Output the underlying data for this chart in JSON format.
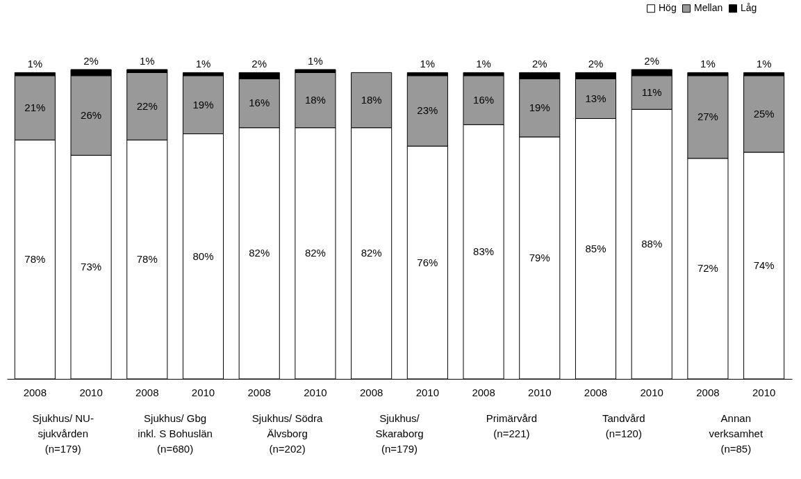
{
  "chart_data": {
    "type": "bar",
    "stacked": true,
    "legend": "top right",
    "ylim": [
      0,
      101
    ],
    "categories": [
      "2008",
      "2010",
      "2008",
      "2010",
      "2008",
      "2010",
      "2008",
      "2010",
      "2008",
      "2010",
      "2008",
      "2010",
      "2008",
      "2010"
    ],
    "series": [
      {
        "name": "Hög",
        "color": "#ffffff",
        "values": [
          78,
          73,
          78,
          80,
          82,
          82,
          82,
          76,
          83,
          79,
          85,
          88,
          72,
          74
        ],
        "value_labels": [
          "78%",
          "73%",
          "78%",
          "80%",
          "82%",
          "82%",
          "82%",
          "76%",
          "83%",
          "79%",
          "85%",
          "88%",
          "72%",
          "74%"
        ]
      },
      {
        "name": "Mellan",
        "color": "#999999",
        "values": [
          21,
          26,
          22,
          19,
          16,
          18,
          18,
          23,
          16,
          19,
          13,
          11,
          27,
          25
        ],
        "value_labels": [
          "21%",
          "26%",
          "22%",
          "19%",
          "16%",
          "18%",
          "18%",
          "23%",
          "16%",
          "19%",
          "13%",
          "11%",
          "27%",
          "25%"
        ]
      },
      {
        "name": "Låg",
        "color": "#000000",
        "values": [
          1,
          2,
          1,
          1,
          2,
          1,
          null,
          1,
          1,
          2,
          2,
          2,
          1,
          1
        ],
        "value_labels": [
          "1%",
          "2%",
          "1%",
          "1%",
          "2%",
          "1%",
          null,
          "1%",
          "1%",
          "2%",
          "2%",
          "2%",
          "1%",
          "1%"
        ]
      }
    ],
    "annotations": [
      "Sjukhus/ NU-\nsjukvården\n(n=179)",
      "Sjukhus/ Gbg\ninkl. S Bohuslän\n(n=680)",
      "Sjukhus/ Södra\nÄlvsborg\n(n=202)",
      "Sjukhus/\nSkaraborg\n(n=179)",
      "Primärvård\n(n=221)",
      "Tandvård\n(n=120)",
      "Annan\nverksamhet\n(n=85)"
    ]
  }
}
